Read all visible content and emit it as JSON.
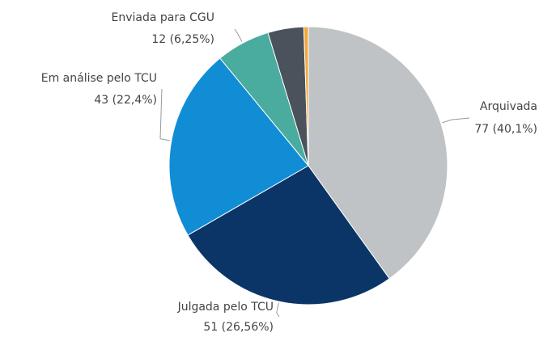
{
  "chart_data": {
    "type": "pie",
    "categories": [
      "Arquivada",
      "Julgada pelo TCU",
      "Em análise pelo TCU",
      "Enviada para CGU",
      null,
      null
    ],
    "values": [
      77,
      51,
      43,
      12,
      8,
      1
    ],
    "value_labels": [
      "77 (40,1%)",
      "51 (26,56%)",
      "43 (22,4%)",
      "12 (6,25%)",
      null,
      null
    ],
    "colors": [
      "#c0c3c6",
      "#0b3567",
      "#118dd6",
      "#4aab9f",
      "#4a535c",
      "#f2a93b"
    ]
  }
}
